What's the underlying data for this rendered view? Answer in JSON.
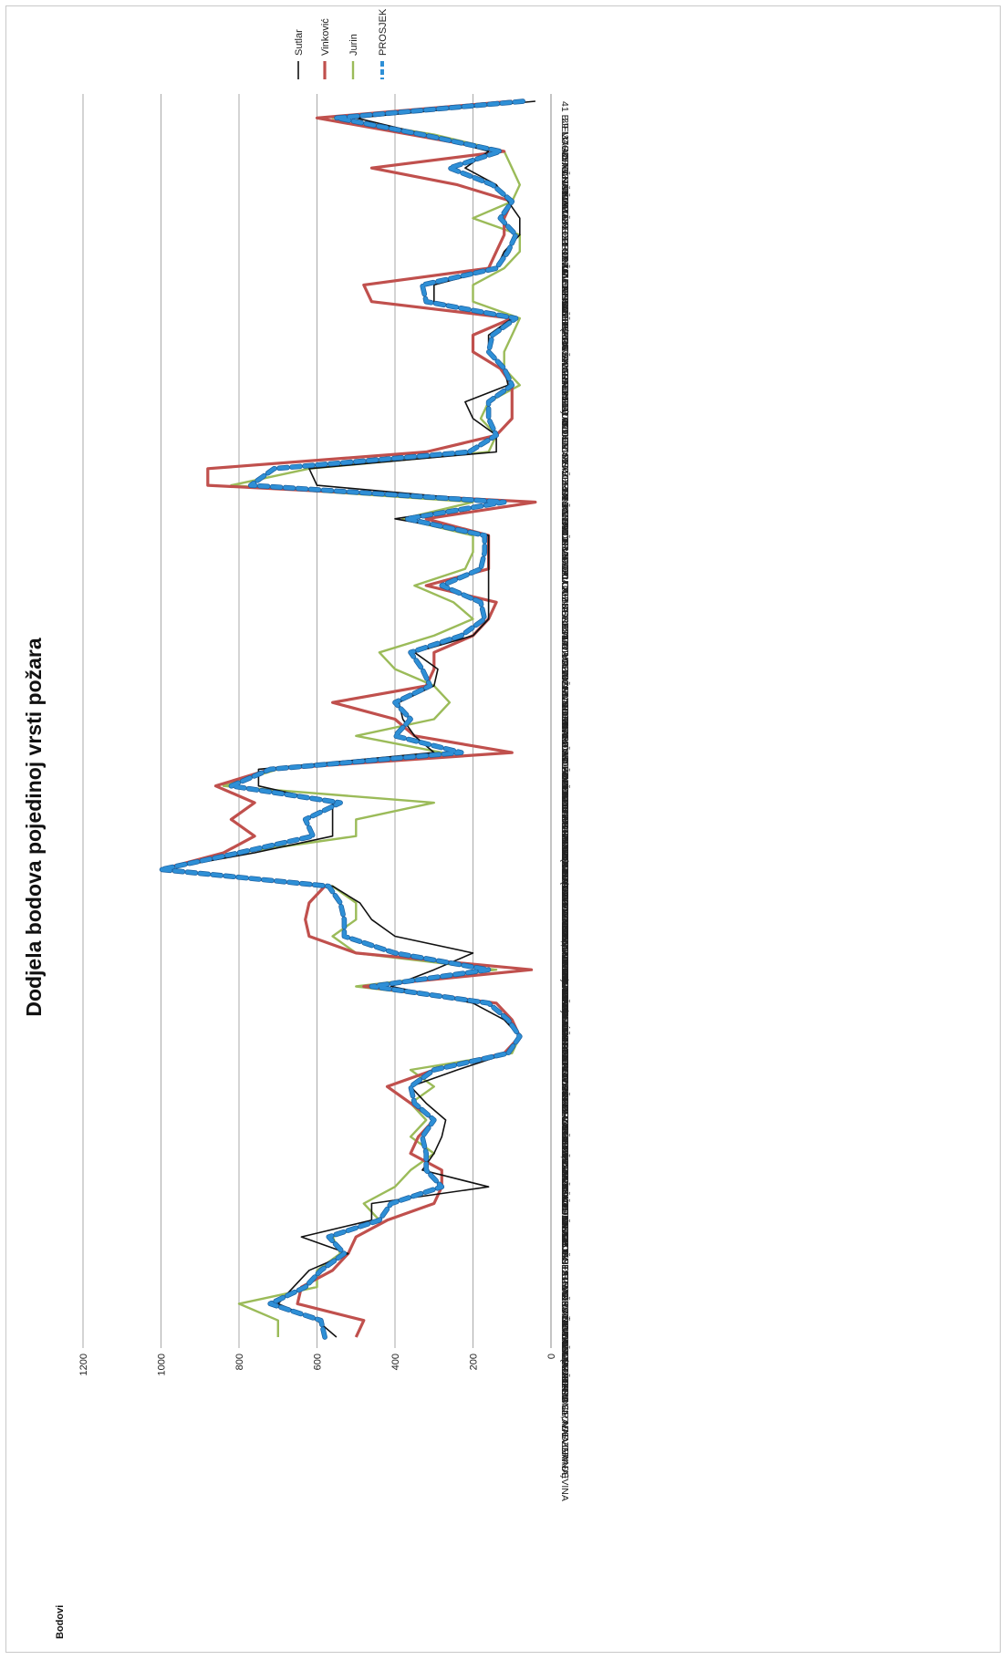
{
  "chart_data": {
    "type": "line",
    "title": "Dodjela bodova pojedinoj vrsti požara",
    "ylabel": "Bodovi",
    "xlabel": "",
    "ylim": [
      0,
      1200
    ],
    "yticks": [
      0,
      200,
      400,
      600,
      800,
      1000,
      1200
    ],
    "grid": true,
    "legend_position": "top",
    "categories": [
      "01  STAMBENA GRAĐEVINA",
      "03  STAMBENO-POSLOVNA GRAĐEVINA",
      "07  GARAŽA (PODZEMNA, NADZEMNA)",
      "09  USTANOVE ZA NJEGU",
      "11  STARAČKI DOM",
      "13  ISTRAŽIVAČKI LABORATORIJ",
      "15  HOTEL",
      "17  OSTALE GRAĐEVINE ZA SMJEŠTAJ",
      "19  KINO",
      "22  OSTALA MJESTA ZA OKUPLJANJA",
      "24  MUZEJ",
      "26  PRODAJNI OBJEKT",
      "28  TRGOVAČKI CENTAR",
      "30  VELESAJAMSKI OBJEKT",
      "32  OSTALI ŽELJEZNIČKI OBJEKTI",
      "34  AERODROM, ZRAČNA LUKA",
      "37  MARINA",
      "39  POLJ.OBJ. ZA ČUVANJE I SKLADIŠT.STOČNE HRANE",
      "41  NEDOVRŠENE GRAĐEVINE",
      "43  VIDIKOVAC",
      "45  SUŠARA ZA DUHAN",
      "47  MLIN",
      "49  POGON ZA PRERADU PREHRAMBENIH PROIZVODA",
      "53  PLINOVOD",
      "55  PRERADA TEKUĆIH I PLINOVITIH ZAPALJIVIH TVARI",
      "59  POGON ZA PRERADU DRVA I DRVNE GRAĐE",
      "62  POGON ZA PRERADU PAPIRA",
      "64  POGON ZA PROIZVODNJU TEKSTILA",
      "66  RAFINERIJA",
      "68  POGON ZA PROIZVODNJU ULJA I MASTI",
      "70  POGON ZA PROIZVODNJU PLINA POD TLAKOM",
      "72  POGON ZA PROIZVODNJU GUME",
      "74  POGON ZA PROIZVODNJU UMJETNIH MATERIJALA",
      "76  OSTALI POGONI ZA PROIZVODNJU KEMIKALIJA",
      "78  POGON U RUDNICIMA",
      "80  PRIJENOS EL.ENERGIJE (DALEKOVOD, RAZV.MREŽA)",
      "82  SKLADIŠTENJE KRMIVA(STOGOVI SLAME, SIJENA)",
      "84  SKLADIŠNI OBJEKTI - ZATVORENI",
      "86  NAFTOVOD",
      "101  ELEKTRIČNA LOKOMOTIVA",
      "103  MOTORNA KOLA S AKUMULATOROM",
      "105  DIZEL MOTORNO VOZILO",
      "107  VAGON CISTERNA",
      "109  FURGON",
      "199  OSTALA PRUŽNA VOZILA",
      "202  TERETNO VOZILO-KAMION",
      "204  PRIKOLICA",
      "206  AUTOBUS",
      "208  SPECIJALNA VOZILA",
      "301  ZRAKOPLOV",
      "304  JEDRILICA",
      "401  PUTNIČKI BROD",
      "403  TANKER",
      "405  ŠLEPER",
      "407  MOTORNI ČAMAC",
      "409  GLISER",
      "411  DOK",
      "501  TRAKTOR",
      "509  OSTALI POLJOPRIVREDNI STROJEVI",
      "512  GREDELJ",
      "514  BAGER",
      "599  OSTALI RADNI STROJEVI",
      "10  ŠIKARA",
      "13  KAMENJAR",
      "16  STRNIŠTE",
      "19  VINOGRAD",
      "21  ORANICA",
      "25  DEPONIJ",
      "28  PROSTOR UZ CESTU",
      "31  PROSTOR UZ ŽELJ. PRUGU (PRUŽ.NASIP I SL.)",
      "33  PROSTOR ELEKTRO-ENERGETSKOG POSTROJENJA",
      "35  PARKIRALIŠTE",
      "37  AUTO KAMP",
      "39  MARINA-LUČICA",
      "41  BJELOGORIČNA ŠUMA"
    ],
    "series": [
      {
        "name": "Sutlar",
        "color": "#111111",
        "values": [
          550,
          600,
          700,
          660,
          620,
          520,
          640,
          460,
          460,
          160,
          330,
          300,
          280,
          270,
          320,
          360,
          240,
          110,
          80,
          120,
          200,
          410,
          300,
          200,
          400,
          460,
          490,
          560,
          1000,
          760,
          560,
          560,
          560,
          750,
          750,
          300,
          350,
          380,
          390,
          300,
          290,
          350,
          200,
          160,
          160,
          160,
          160,
          160,
          160,
          400,
          120,
          600,
          620,
          140,
          140,
          200,
          220,
          110,
          120,
          160,
          160,
          100,
          300,
          300,
          140,
          120,
          80,
          80,
          110,
          140,
          220,
          160,
          320,
          500,
          40
        ]
      },
      {
        "name": "Vinković",
        "color": "#c0504d",
        "values": [
          500,
          480,
          650,
          640,
          560,
          520,
          500,
          420,
          300,
          280,
          280,
          360,
          340,
          300,
          360,
          420,
          300,
          120,
          80,
          100,
          140,
          480,
          50,
          500,
          620,
          630,
          620,
          580,
          1000,
          840,
          760,
          820,
          760,
          860,
          720,
          100,
          350,
          400,
          560,
          320,
          300,
          300,
          200,
          160,
          140,
          320,
          160,
          160,
          160,
          320,
          40,
          880,
          880,
          320,
          140,
          100,
          100,
          100,
          130,
          200,
          200,
          100,
          460,
          480,
          160,
          140,
          120,
          120,
          100,
          240,
          460,
          120,
          360,
          600,
          100
        ]
      },
      {
        "name": "Jurin",
        "color": "#9bbb59",
        "values": [
          700,
          700,
          800,
          600,
          600,
          540,
          560,
          440,
          480,
          400,
          360,
          300,
          360,
          320,
          360,
          300,
          360,
          100,
          80,
          100,
          140,
          500,
          140,
          500,
          560,
          500,
          500,
          560,
          1000,
          800,
          500,
          500,
          300,
          840,
          700,
          280,
          500,
          300,
          260,
          300,
          400,
          440,
          300,
          200,
          250,
          350,
          220,
          200,
          200,
          380,
          200,
          820,
          620,
          160,
          140,
          180,
          160,
          80,
          120,
          120,
          100,
          80,
          200,
          200,
          120,
          80,
          80,
          200,
          100,
          80,
          100,
          120,
          300,
          560,
          80
        ]
      },
      {
        "name": "PROSJEK",
        "color": "#2e8fd6",
        "values": [
          580,
          590,
          720,
          630,
          590,
          530,
          570,
          440,
          410,
          280,
          320,
          320,
          330,
          300,
          350,
          360,
          300,
          110,
          80,
          110,
          160,
          460,
          160,
          400,
          530,
          530,
          540,
          570,
          1000,
          800,
          610,
          630,
          540,
          820,
          720,
          230,
          400,
          360,
          400,
          310,
          330,
          360,
          230,
          170,
          180,
          280,
          180,
          170,
          170,
          370,
          120,
          770,
          710,
          210,
          140,
          160,
          160,
          100,
          120,
          160,
          150,
          90,
          320,
          330,
          140,
          110,
          90,
          130,
          100,
          150,
          260,
          130,
          330,
          550,
          70
        ]
      }
    ]
  }
}
